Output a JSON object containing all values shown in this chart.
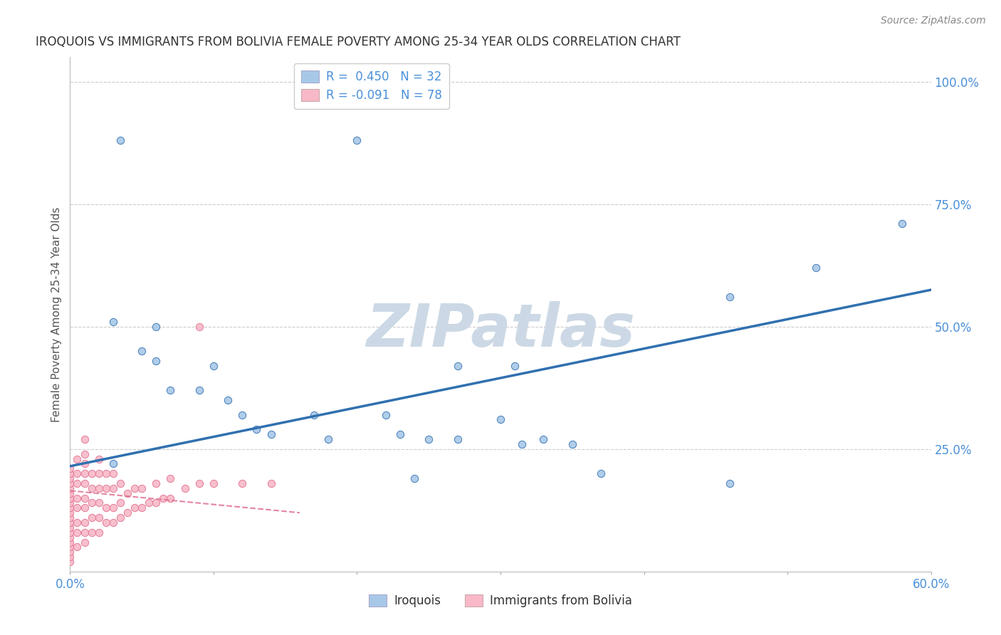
{
  "title": "IROQUOIS VS IMMIGRANTS FROM BOLIVIA FEMALE POVERTY AMONG 25-34 YEAR OLDS CORRELATION CHART",
  "source": "Source: ZipAtlas.com",
  "ylabel": "Female Poverty Among 25-34 Year Olds",
  "xlabel_blue": "Iroquois",
  "xlabel_pink": "Immigrants from Bolivia",
  "xlim": [
    0.0,
    0.6
  ],
  "ylim": [
    0.0,
    1.05
  ],
  "legend_blue_r": "R =  0.450",
  "legend_blue_n": "N = 32",
  "legend_pink_r": "R = -0.091",
  "legend_pink_n": "N = 78",
  "blue_color": "#a8c8e8",
  "blue_line_color": "#3070b0",
  "pink_color": "#f8b8c8",
  "pink_line_color": "#e07090",
  "watermark": "ZIPatlas",
  "watermark_color": "#ccd8e5",
  "blue_scatter_x": [
    0.035,
    0.2,
    0.27,
    0.31,
    0.03,
    0.05,
    0.06,
    0.07,
    0.09,
    0.1,
    0.11,
    0.12,
    0.13,
    0.14,
    0.17,
    0.18,
    0.22,
    0.23,
    0.25,
    0.27,
    0.3,
    0.315,
    0.33,
    0.35,
    0.37,
    0.46,
    0.52,
    0.58,
    0.03,
    0.06,
    0.24,
    0.46
  ],
  "blue_scatter_y": [
    0.88,
    0.88,
    0.42,
    0.42,
    0.51,
    0.45,
    0.43,
    0.37,
    0.37,
    0.42,
    0.35,
    0.32,
    0.29,
    0.28,
    0.32,
    0.27,
    0.32,
    0.28,
    0.27,
    0.27,
    0.31,
    0.26,
    0.27,
    0.26,
    0.2,
    0.56,
    0.62,
    0.71,
    0.22,
    0.5,
    0.19,
    0.18
  ],
  "pink_scatter_x": [
    0.0,
    0.0,
    0.0,
    0.0,
    0.0,
    0.0,
    0.0,
    0.0,
    0.0,
    0.0,
    0.0,
    0.0,
    0.0,
    0.0,
    0.0,
    0.0,
    0.0,
    0.0,
    0.0,
    0.0,
    0.005,
    0.005,
    0.005,
    0.005,
    0.005,
    0.005,
    0.005,
    0.005,
    0.01,
    0.01,
    0.01,
    0.01,
    0.01,
    0.01,
    0.01,
    0.01,
    0.01,
    0.01,
    0.015,
    0.015,
    0.015,
    0.015,
    0.015,
    0.02,
    0.02,
    0.02,
    0.02,
    0.02,
    0.02,
    0.025,
    0.025,
    0.025,
    0.025,
    0.03,
    0.03,
    0.03,
    0.03,
    0.035,
    0.035,
    0.035,
    0.04,
    0.04,
    0.045,
    0.045,
    0.05,
    0.05,
    0.055,
    0.06,
    0.06,
    0.065,
    0.07,
    0.07,
    0.08,
    0.09,
    0.09,
    0.1,
    0.12,
    0.14
  ],
  "pink_scatter_y": [
    0.02,
    0.03,
    0.04,
    0.05,
    0.06,
    0.07,
    0.08,
    0.09,
    0.1,
    0.11,
    0.12,
    0.13,
    0.14,
    0.15,
    0.16,
    0.17,
    0.18,
    0.19,
    0.2,
    0.21,
    0.05,
    0.08,
    0.1,
    0.13,
    0.15,
    0.18,
    0.2,
    0.23,
    0.06,
    0.08,
    0.1,
    0.13,
    0.15,
    0.18,
    0.2,
    0.22,
    0.24,
    0.27,
    0.08,
    0.11,
    0.14,
    0.17,
    0.2,
    0.08,
    0.11,
    0.14,
    0.17,
    0.2,
    0.23,
    0.1,
    0.13,
    0.17,
    0.2,
    0.1,
    0.13,
    0.17,
    0.2,
    0.11,
    0.14,
    0.18,
    0.12,
    0.16,
    0.13,
    0.17,
    0.13,
    0.17,
    0.14,
    0.14,
    0.18,
    0.15,
    0.15,
    0.19,
    0.17,
    0.18,
    0.5,
    0.18,
    0.18,
    0.18
  ],
  "background_color": "#ffffff",
  "grid_color": "#cccccc",
  "blue_trend_x0": 0.0,
  "blue_trend_y0": 0.215,
  "blue_trend_x1": 0.6,
  "blue_trend_y1": 0.575,
  "pink_trend_x0": 0.0,
  "pink_trend_y0": 0.165,
  "pink_trend_x1": 0.16,
  "pink_trend_y1": 0.12
}
